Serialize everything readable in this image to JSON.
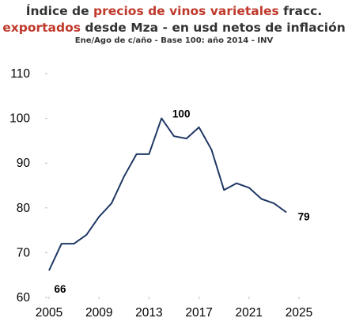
{
  "title": {
    "line1_part1": "Índice de ",
    "line1_part2_red": "precios de vinos varietales",
    "line1_part3": " fracc.",
    "line2_part1_red": "exportados",
    "line2_part2": " desde Mza - en usd netos de inflación",
    "subtitle": "Ene/Ago de c/año - Base 100: año 2014 - INV"
  },
  "colors": {
    "line": "#1f3864",
    "red": "#c0392b",
    "text": "#333333"
  },
  "chart_data": {
    "type": "line",
    "title": "Índice de precios de vinos varietales fracc. exportados desde Mza - en usd netos de inflación",
    "subtitle": "Ene/Ago de c/año - Base 100: año 2014 - INV",
    "xlabel": "",
    "ylabel": "",
    "xlim": [
      2005,
      2025
    ],
    "ylim": [
      60,
      110
    ],
    "x_ticks": [
      2005,
      2009,
      2013,
      2017,
      2021,
      2025
    ],
    "y_ticks": [
      60,
      70,
      80,
      90,
      100,
      110
    ],
    "grid": false,
    "series": [
      {
        "x": [
          2005,
          2006,
          2007,
          2008,
          2009,
          2010,
          2011,
          2012,
          2013,
          2014,
          2015,
          2016,
          2017,
          2018,
          2019,
          2020,
          2021,
          2022,
          2023,
          2024,
          2025
        ],
        "values": [
          66,
          72,
          72,
          74,
          78,
          81,
          87,
          92,
          92,
          100,
          96,
          95.5,
          98,
          93,
          84,
          85.5,
          84.5,
          82,
          81,
          79,
          null
        ]
      }
    ],
    "annotations": [
      {
        "text": "66",
        "x": 2005,
        "y": 66
      },
      {
        "text": "100",
        "x": 2014,
        "y": 100
      },
      {
        "text": "79",
        "x": 2024,
        "y": 79
      }
    ]
  }
}
